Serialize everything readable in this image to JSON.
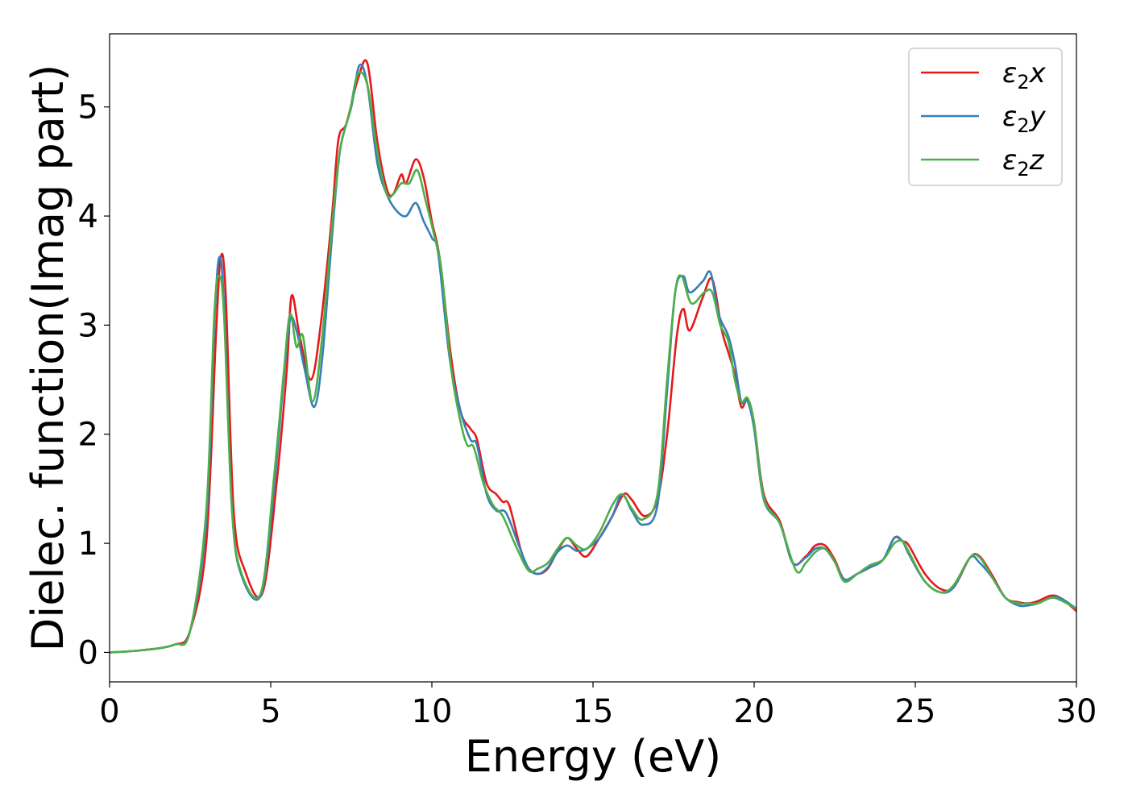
{
  "chart_data": {
    "type": "line",
    "xlabel": "Energy (eV)",
    "ylabel": "Dielec. function(Imag part)",
    "xlim": [
      0,
      30
    ],
    "ylim": [
      -0.27,
      5.67
    ],
    "xticks": [
      0,
      5,
      10,
      15,
      20,
      25,
      30
    ],
    "yticks": [
      0,
      1,
      2,
      3,
      4,
      5
    ],
    "legend_position": "top-right",
    "grid": false,
    "series": [
      {
        "name": "ε₂x",
        "legend": {
          "base": "ε",
          "sub": "2",
          "tail": "x"
        },
        "color": "#e41a1c",
        "points": [
          [
            0,
            0.0
          ],
          [
            1,
            0.02
          ],
          [
            2,
            0.07
          ],
          [
            2.5,
            0.2
          ],
          [
            3,
            1.0
          ],
          [
            3.3,
            2.9
          ],
          [
            3.45,
            3.62
          ],
          [
            3.6,
            3.3
          ],
          [
            3.85,
            1.3
          ],
          [
            4.2,
            0.75
          ],
          [
            4.75,
            0.55
          ],
          [
            5.2,
            1.6
          ],
          [
            5.5,
            2.6
          ],
          [
            5.65,
            3.27
          ],
          [
            5.9,
            2.9
          ],
          [
            6.25,
            2.5
          ],
          [
            6.55,
            3.0
          ],
          [
            6.9,
            4.0
          ],
          [
            7.1,
            4.7
          ],
          [
            7.35,
            4.85
          ],
          [
            7.7,
            5.25
          ],
          [
            8.0,
            5.4
          ],
          [
            8.3,
            4.7
          ],
          [
            8.6,
            4.25
          ],
          [
            8.8,
            4.2
          ],
          [
            9.05,
            4.38
          ],
          [
            9.2,
            4.3
          ],
          [
            9.5,
            4.52
          ],
          [
            9.75,
            4.35
          ],
          [
            10.0,
            3.95
          ],
          [
            10.25,
            3.6
          ],
          [
            10.6,
            2.7
          ],
          [
            10.9,
            2.2
          ],
          [
            11.2,
            2.05
          ],
          [
            11.4,
            1.95
          ],
          [
            11.7,
            1.55
          ],
          [
            12.0,
            1.45
          ],
          [
            12.2,
            1.38
          ],
          [
            12.4,
            1.35
          ],
          [
            12.75,
            0.95
          ],
          [
            13.0,
            0.77
          ],
          [
            13.3,
            0.72
          ],
          [
            13.6,
            0.77
          ],
          [
            13.9,
            0.93
          ],
          [
            14.2,
            1.05
          ],
          [
            14.5,
            0.95
          ],
          [
            14.8,
            0.88
          ],
          [
            15.2,
            1.05
          ],
          [
            15.6,
            1.25
          ],
          [
            15.95,
            1.45
          ],
          [
            16.2,
            1.4
          ],
          [
            16.6,
            1.25
          ],
          [
            17.0,
            1.4
          ],
          [
            17.3,
            2.0
          ],
          [
            17.6,
            2.9
          ],
          [
            17.8,
            3.15
          ],
          [
            18.0,
            2.95
          ],
          [
            18.4,
            3.25
          ],
          [
            18.7,
            3.42
          ],
          [
            19.0,
            2.95
          ],
          [
            19.2,
            2.75
          ],
          [
            19.4,
            2.55
          ],
          [
            19.6,
            2.25
          ],
          [
            19.8,
            2.32
          ],
          [
            20.0,
            2.1
          ],
          [
            20.3,
            1.45
          ],
          [
            20.8,
            1.2
          ],
          [
            21.2,
            0.82
          ],
          [
            21.6,
            0.88
          ],
          [
            21.9,
            0.98
          ],
          [
            22.2,
            0.98
          ],
          [
            22.5,
            0.85
          ],
          [
            22.8,
            0.67
          ],
          [
            23.2,
            0.72
          ],
          [
            23.6,
            0.78
          ],
          [
            24.0,
            0.85
          ],
          [
            24.35,
            1.05
          ],
          [
            24.6,
            1.02
          ],
          [
            24.8,
            0.98
          ],
          [
            25.3,
            0.72
          ],
          [
            25.8,
            0.58
          ],
          [
            26.2,
            0.6
          ],
          [
            26.7,
            0.87
          ],
          [
            27.0,
            0.88
          ],
          [
            27.4,
            0.7
          ],
          [
            27.8,
            0.5
          ],
          [
            28.2,
            0.46
          ],
          [
            28.5,
            0.45
          ],
          [
            28.8,
            0.47
          ],
          [
            29.2,
            0.52
          ],
          [
            29.5,
            0.5
          ],
          [
            30.0,
            0.38
          ]
        ]
      },
      {
        "name": "ε₂y",
        "legend": {
          "base": "ε",
          "sub": "2",
          "tail": "y"
        },
        "color": "#377eb8",
        "points": [
          [
            0,
            0.0
          ],
          [
            1,
            0.02
          ],
          [
            2,
            0.07
          ],
          [
            2.5,
            0.2
          ],
          [
            3,
            1.2
          ],
          [
            3.25,
            3.0
          ],
          [
            3.4,
            3.62
          ],
          [
            3.55,
            3.2
          ],
          [
            3.8,
            1.3
          ],
          [
            4.1,
            0.7
          ],
          [
            4.7,
            0.53
          ],
          [
            5.1,
            1.5
          ],
          [
            5.4,
            2.5
          ],
          [
            5.6,
            3.05
          ],
          [
            5.8,
            2.95
          ],
          [
            6.05,
            2.6
          ],
          [
            6.35,
            2.25
          ],
          [
            6.6,
            2.7
          ],
          [
            6.9,
            3.8
          ],
          [
            7.15,
            4.6
          ],
          [
            7.5,
            5.0
          ],
          [
            7.75,
            5.38
          ],
          [
            8.0,
            5.2
          ],
          [
            8.3,
            4.5
          ],
          [
            8.6,
            4.2
          ],
          [
            8.9,
            4.05
          ],
          [
            9.2,
            4.0
          ],
          [
            9.5,
            4.12
          ],
          [
            9.75,
            3.95
          ],
          [
            10.0,
            3.8
          ],
          [
            10.2,
            3.65
          ],
          [
            10.55,
            2.7
          ],
          [
            10.9,
            2.2
          ],
          [
            11.2,
            1.95
          ],
          [
            11.4,
            1.9
          ],
          [
            11.7,
            1.45
          ],
          [
            12.0,
            1.3
          ],
          [
            12.3,
            1.28
          ],
          [
            12.7,
            0.98
          ],
          [
            13.0,
            0.77
          ],
          [
            13.3,
            0.72
          ],
          [
            13.6,
            0.78
          ],
          [
            13.9,
            0.92
          ],
          [
            14.2,
            0.98
          ],
          [
            14.5,
            0.93
          ],
          [
            14.8,
            0.95
          ],
          [
            15.2,
            1.05
          ],
          [
            15.6,
            1.25
          ],
          [
            15.9,
            1.45
          ],
          [
            16.2,
            1.3
          ],
          [
            16.55,
            1.17
          ],
          [
            17.0,
            1.35
          ],
          [
            17.3,
            2.4
          ],
          [
            17.55,
            3.3
          ],
          [
            17.8,
            3.45
          ],
          [
            18.0,
            3.3
          ],
          [
            18.4,
            3.4
          ],
          [
            18.65,
            3.48
          ],
          [
            18.9,
            3.1
          ],
          [
            19.2,
            2.9
          ],
          [
            19.4,
            2.65
          ],
          [
            19.6,
            2.3
          ],
          [
            19.8,
            2.3
          ],
          [
            20.0,
            2.05
          ],
          [
            20.3,
            1.4
          ],
          [
            20.8,
            1.18
          ],
          [
            21.2,
            0.82
          ],
          [
            21.6,
            0.87
          ],
          [
            21.9,
            0.95
          ],
          [
            22.2,
            0.95
          ],
          [
            22.5,
            0.83
          ],
          [
            22.8,
            0.67
          ],
          [
            23.2,
            0.72
          ],
          [
            23.6,
            0.78
          ],
          [
            24.0,
            0.85
          ],
          [
            24.35,
            1.05
          ],
          [
            24.6,
            1.02
          ],
          [
            24.8,
            0.9
          ],
          [
            25.3,
            0.65
          ],
          [
            25.8,
            0.55
          ],
          [
            26.2,
            0.6
          ],
          [
            26.7,
            0.87
          ],
          [
            27.0,
            0.82
          ],
          [
            27.4,
            0.68
          ],
          [
            27.8,
            0.5
          ],
          [
            28.2,
            0.43
          ],
          [
            28.5,
            0.43
          ],
          [
            28.8,
            0.45
          ],
          [
            29.2,
            0.5
          ],
          [
            29.5,
            0.5
          ],
          [
            30.0,
            0.4
          ]
        ]
      },
      {
        "name": "ε₂z",
        "legend": {
          "base": "ε",
          "sub": "2",
          "tail": "z"
        },
        "color": "#4daf4a",
        "points": [
          [
            0,
            0.0
          ],
          [
            1,
            0.02
          ],
          [
            2,
            0.07
          ],
          [
            2.5,
            0.2
          ],
          [
            3,
            1.3
          ],
          [
            3.25,
            3.1
          ],
          [
            3.4,
            3.45
          ],
          [
            3.55,
            3.1
          ],
          [
            3.8,
            1.3
          ],
          [
            4.1,
            0.72
          ],
          [
            4.7,
            0.55
          ],
          [
            5.1,
            1.6
          ],
          [
            5.4,
            2.55
          ],
          [
            5.6,
            3.1
          ],
          [
            5.8,
            2.8
          ],
          [
            6.0,
            2.9
          ],
          [
            6.3,
            2.3
          ],
          [
            6.6,
            2.9
          ],
          [
            6.9,
            3.9
          ],
          [
            7.15,
            4.6
          ],
          [
            7.45,
            4.95
          ],
          [
            7.7,
            5.3
          ],
          [
            8.0,
            5.2
          ],
          [
            8.3,
            4.6
          ],
          [
            8.6,
            4.2
          ],
          [
            8.8,
            4.2
          ],
          [
            9.05,
            4.3
          ],
          [
            9.3,
            4.3
          ],
          [
            9.55,
            4.42
          ],
          [
            9.8,
            4.15
          ],
          [
            10.05,
            3.85
          ],
          [
            10.3,
            3.5
          ],
          [
            10.6,
            2.6
          ],
          [
            10.9,
            2.1
          ],
          [
            11.1,
            1.9
          ],
          [
            11.3,
            1.88
          ],
          [
            11.6,
            1.55
          ],
          [
            11.9,
            1.35
          ],
          [
            12.2,
            1.25
          ],
          [
            12.6,
            0.98
          ],
          [
            13.0,
            0.75
          ],
          [
            13.3,
            0.77
          ],
          [
            13.6,
            0.82
          ],
          [
            13.9,
            0.95
          ],
          [
            14.2,
            1.05
          ],
          [
            14.5,
            0.98
          ],
          [
            14.8,
            0.95
          ],
          [
            15.2,
            1.1
          ],
          [
            15.6,
            1.35
          ],
          [
            15.9,
            1.45
          ],
          [
            16.2,
            1.32
          ],
          [
            16.55,
            1.22
          ],
          [
            17.0,
            1.45
          ],
          [
            17.3,
            2.5
          ],
          [
            17.55,
            3.3
          ],
          [
            17.75,
            3.45
          ],
          [
            18.05,
            3.2
          ],
          [
            18.45,
            3.3
          ],
          [
            18.7,
            3.3
          ],
          [
            18.95,
            3.0
          ],
          [
            19.2,
            2.85
          ],
          [
            19.4,
            2.5
          ],
          [
            19.6,
            2.3
          ],
          [
            19.8,
            2.33
          ],
          [
            20.0,
            2.1
          ],
          [
            20.3,
            1.42
          ],
          [
            20.8,
            1.18
          ],
          [
            21.3,
            0.75
          ],
          [
            21.6,
            0.82
          ],
          [
            21.9,
            0.92
          ],
          [
            22.2,
            0.95
          ],
          [
            22.5,
            0.83
          ],
          [
            22.8,
            0.65
          ],
          [
            23.2,
            0.72
          ],
          [
            23.6,
            0.8
          ],
          [
            24.0,
            0.85
          ],
          [
            24.35,
            1.0
          ],
          [
            24.6,
            1.02
          ],
          [
            24.8,
            0.92
          ],
          [
            25.3,
            0.65
          ],
          [
            25.8,
            0.55
          ],
          [
            26.2,
            0.62
          ],
          [
            26.7,
            0.87
          ],
          [
            27.0,
            0.87
          ],
          [
            27.4,
            0.68
          ],
          [
            27.8,
            0.5
          ],
          [
            28.2,
            0.45
          ],
          [
            28.5,
            0.45
          ],
          [
            28.8,
            0.45
          ],
          [
            29.2,
            0.5
          ],
          [
            29.5,
            0.48
          ],
          [
            30.0,
            0.4
          ]
        ]
      }
    ]
  }
}
